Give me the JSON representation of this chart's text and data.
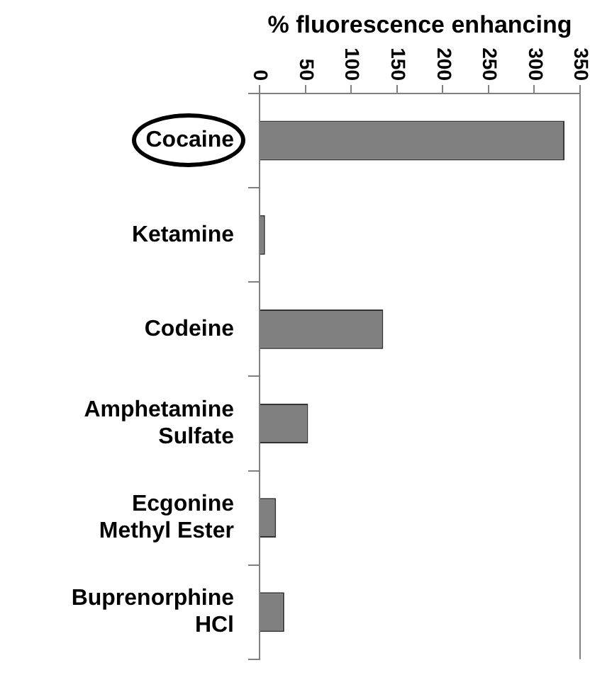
{
  "chart_data": {
    "type": "bar",
    "orientation": "horizontal",
    "xlabel": "% fluorescence enhancing",
    "categories": [
      "Cocaine",
      "Ketamine",
      "Codeine",
      "Amphetamine\nSulfate",
      "Ecgonine\nMethyl Ester",
      "Buprenorphine\nHCl"
    ],
    "values": [
      333,
      6,
      135,
      53,
      18,
      27
    ],
    "color": "#808080",
    "xlim": [
      0,
      350
    ],
    "xticks": [
      0,
      50,
      100,
      150,
      200,
      250,
      300,
      350
    ],
    "grid": false,
    "legend": false
  }
}
